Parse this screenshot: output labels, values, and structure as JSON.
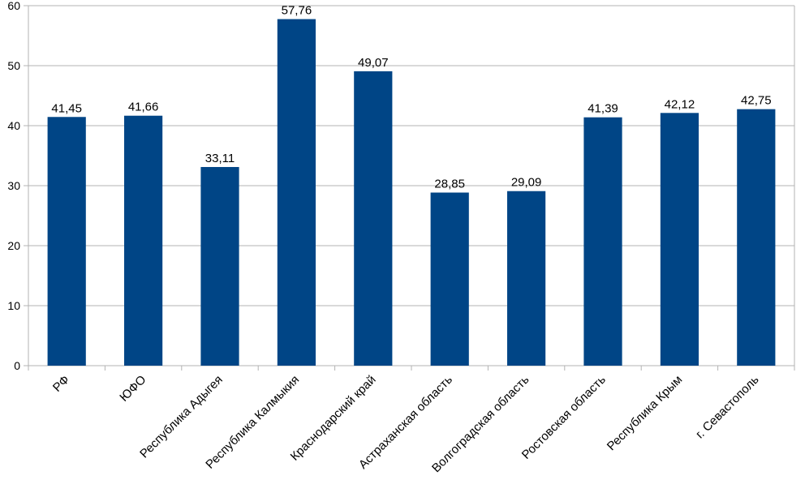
{
  "chart_data": {
    "type": "bar",
    "categories": [
      "РФ",
      "ЮФО",
      "Республика Адыгея",
      "Республика Калмыкия",
      "Краснодарский край",
      "Астраханская область",
      "Волгоградская область",
      "Ростовская область",
      "Республика Крым",
      "г. Севастополь"
    ],
    "values": [
      41.45,
      41.66,
      33.11,
      57.76,
      49.07,
      28.85,
      29.09,
      41.39,
      42.12,
      42.75
    ],
    "value_labels": [
      "41,45",
      "41,66",
      "33,11",
      "57,76",
      "49,07",
      "28,85",
      "29,09",
      "41,39",
      "42,12",
      "42,75"
    ],
    "ylim": [
      0,
      60
    ],
    "yticks": [
      0,
      10,
      20,
      30,
      40,
      50,
      60
    ],
    "grid": true,
    "legend": "none",
    "bar_color": "#004586",
    "title": "",
    "xlabel": "",
    "ylabel": ""
  }
}
